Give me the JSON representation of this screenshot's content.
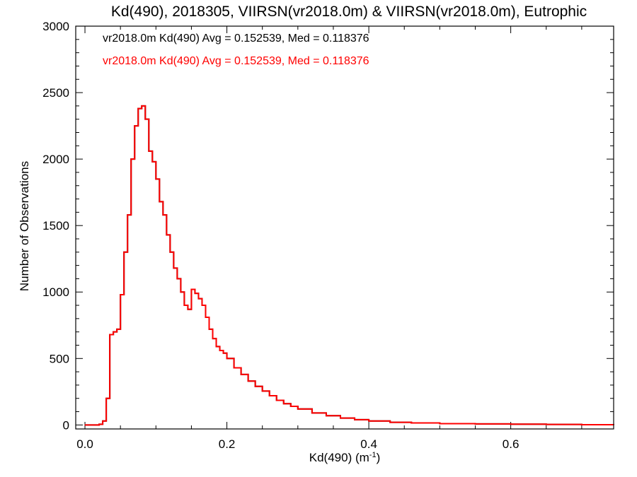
{
  "chart_data": {
    "type": "line",
    "title": "Kd(490), 2018305, VIIRSN(vr2018.0m) & VIIRSN(vr2018.0m), Eutrophic",
    "xlabel": "Kd(490) (m",
    "xlabel_sup": "-1",
    "xlabel_close": ")",
    "ylabel": "Number of Observations",
    "xlim": [
      -0.013,
      0.745
    ],
    "ylim": [
      -30,
      3000
    ],
    "x_ticks": [
      0.0,
      0.2,
      0.4,
      0.6
    ],
    "x_tick_labels": [
      "0.0",
      "0.2",
      "0.4",
      "0.6"
    ],
    "y_ticks": [
      0,
      500,
      1000,
      1500,
      2000,
      2500,
      3000
    ],
    "y_tick_labels": [
      "0",
      "500",
      "1000",
      "1500",
      "2000",
      "2500",
      "3000"
    ],
    "grid": false,
    "legend_position": "top-left",
    "series": [
      {
        "name": "vr2018.0m Kd(490) Avg = 0.152539, Med = 0.118376",
        "color": "#000000",
        "x": [
          0.0,
          0.02,
          0.025,
          0.03,
          0.035,
          0.04,
          0.045,
          0.05,
          0.055,
          0.06,
          0.065,
          0.07,
          0.075,
          0.08,
          0.085,
          0.09,
          0.095,
          0.1,
          0.105,
          0.11,
          0.115,
          0.12,
          0.125,
          0.13,
          0.135,
          0.14,
          0.145,
          0.15,
          0.155,
          0.16,
          0.165,
          0.17,
          0.175,
          0.18,
          0.185,
          0.19,
          0.195,
          0.2,
          0.21,
          0.22,
          0.23,
          0.24,
          0.25,
          0.26,
          0.27,
          0.28,
          0.29,
          0.3,
          0.32,
          0.34,
          0.36,
          0.38,
          0.4,
          0.43,
          0.46,
          0.5,
          0.55,
          0.6,
          0.65,
          0.7,
          0.745
        ],
        "y": [
          0,
          5,
          30,
          200,
          680,
          700,
          720,
          980,
          1300,
          1580,
          2000,
          2250,
          2380,
          2400,
          2300,
          2060,
          1980,
          1850,
          1680,
          1580,
          1430,
          1300,
          1180,
          1100,
          1000,
          900,
          870,
          1020,
          990,
          950,
          900,
          810,
          720,
          650,
          590,
          560,
          540,
          500,
          430,
          380,
          330,
          290,
          255,
          220,
          185,
          160,
          140,
          120,
          90,
          70,
          52,
          40,
          30,
          20,
          15,
          10,
          8,
          6,
          4,
          2,
          1
        ]
      },
      {
        "name": "vr2018.0m Kd(490) Avg = 0.152539, Med = 0.118376",
        "color": "#ff0000",
        "x": [
          0.0,
          0.02,
          0.025,
          0.03,
          0.035,
          0.04,
          0.045,
          0.05,
          0.055,
          0.06,
          0.065,
          0.07,
          0.075,
          0.08,
          0.085,
          0.09,
          0.095,
          0.1,
          0.105,
          0.11,
          0.115,
          0.12,
          0.125,
          0.13,
          0.135,
          0.14,
          0.145,
          0.15,
          0.155,
          0.16,
          0.165,
          0.17,
          0.175,
          0.18,
          0.185,
          0.19,
          0.195,
          0.2,
          0.21,
          0.22,
          0.23,
          0.24,
          0.25,
          0.26,
          0.27,
          0.28,
          0.29,
          0.3,
          0.32,
          0.34,
          0.36,
          0.38,
          0.4,
          0.43,
          0.46,
          0.5,
          0.55,
          0.6,
          0.65,
          0.7,
          0.745
        ],
        "y": [
          0,
          5,
          30,
          200,
          680,
          700,
          720,
          980,
          1300,
          1580,
          2000,
          2250,
          2380,
          2400,
          2300,
          2060,
          1980,
          1850,
          1680,
          1580,
          1430,
          1300,
          1180,
          1100,
          1000,
          900,
          870,
          1020,
          990,
          950,
          900,
          810,
          720,
          650,
          590,
          560,
          540,
          500,
          430,
          380,
          330,
          290,
          255,
          220,
          185,
          160,
          140,
          120,
          90,
          70,
          52,
          40,
          30,
          20,
          15,
          10,
          8,
          6,
          4,
          2,
          1
        ]
      }
    ]
  }
}
